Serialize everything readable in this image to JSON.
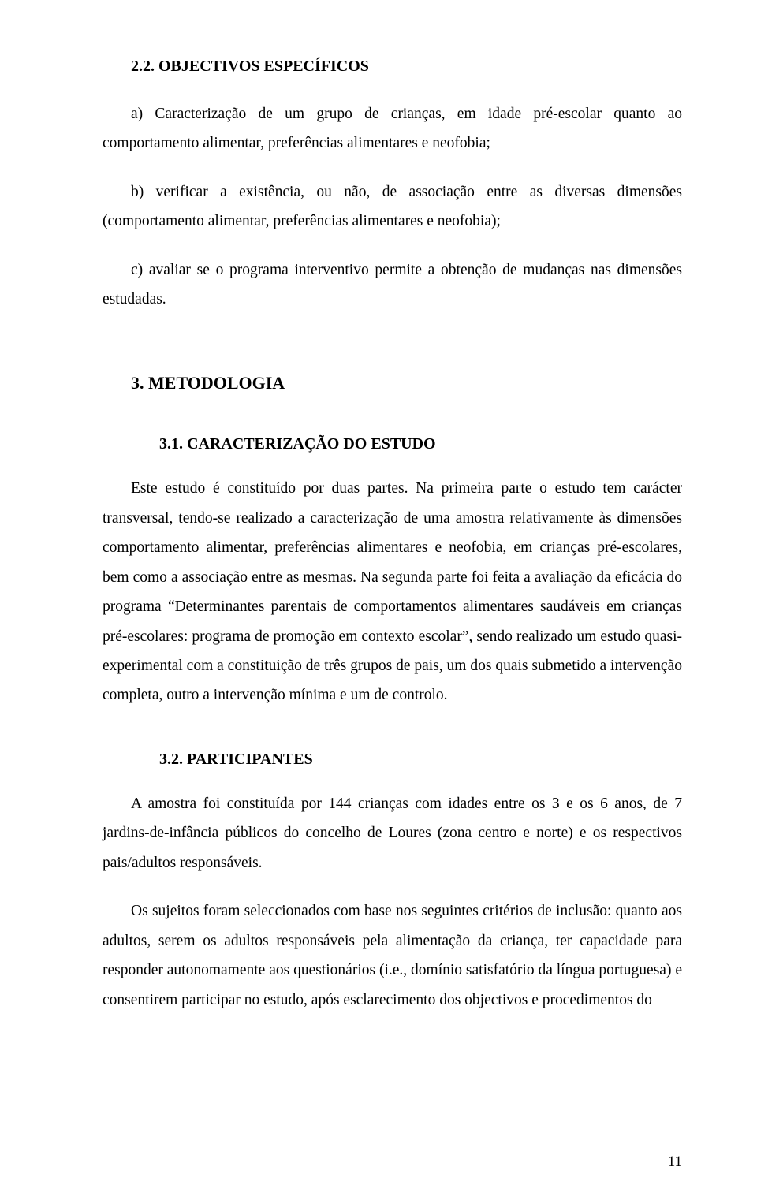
{
  "doc": {
    "section22": {
      "heading": "2.2. OBJECTIVOS ESPECÍFICOS",
      "itemA": "a) Caracterização de um grupo de crianças, em idade pré-escolar quanto ao comportamento alimentar, preferências alimentares e neofobia;",
      "itemB": "b) verificar a existência, ou não, de associação entre as diversas dimensões (comportamento alimentar, preferências alimentares e neofobia);",
      "itemC": "c) avaliar se o programa interventivo permite a obtenção de mudanças nas dimensões estudadas."
    },
    "section3": {
      "heading": "3. METODOLOGIA"
    },
    "section31": {
      "heading": "3.1. CARACTERIZAÇÃO DO ESTUDO",
      "para": "Este estudo é constituído por duas partes. Na primeira parte o estudo tem carácter transversal, tendo-se realizado a caracterização de uma amostra relativamente às dimensões comportamento alimentar, preferências alimentares e neofobia, em crianças pré-escolares, bem como a associação entre as mesmas. Na segunda parte foi feita a avaliação da eficácia do programa “Determinantes parentais de comportamentos alimentares saudáveis em crianças pré-escolares: programa de promoção em contexto escolar”, sendo realizado um estudo quasi-experimental com a constituição de três grupos de pais, um dos quais submetido a intervenção completa, outro a intervenção mínima e um de controlo."
    },
    "section32": {
      "heading": "3.2. PARTICIPANTES",
      "para1": "A amostra foi constituída por 144 crianças com idades entre os 3 e os 6 anos, de 7 jardins-de-infância públicos do concelho de Loures (zona centro e norte) e os respectivos pais/adultos responsáveis.",
      "para2": "Os sujeitos foram seleccionados com base nos seguintes critérios de inclusão: quanto aos adultos, serem os adultos responsáveis pela alimentação da criança, ter capacidade para responder autonomamente aos questionários (i.e., domínio satisfatório da língua portuguesa) e consentirem participar no estudo, após esclarecimento dos objectivos e procedimentos do"
    },
    "pageNumber": "11"
  }
}
